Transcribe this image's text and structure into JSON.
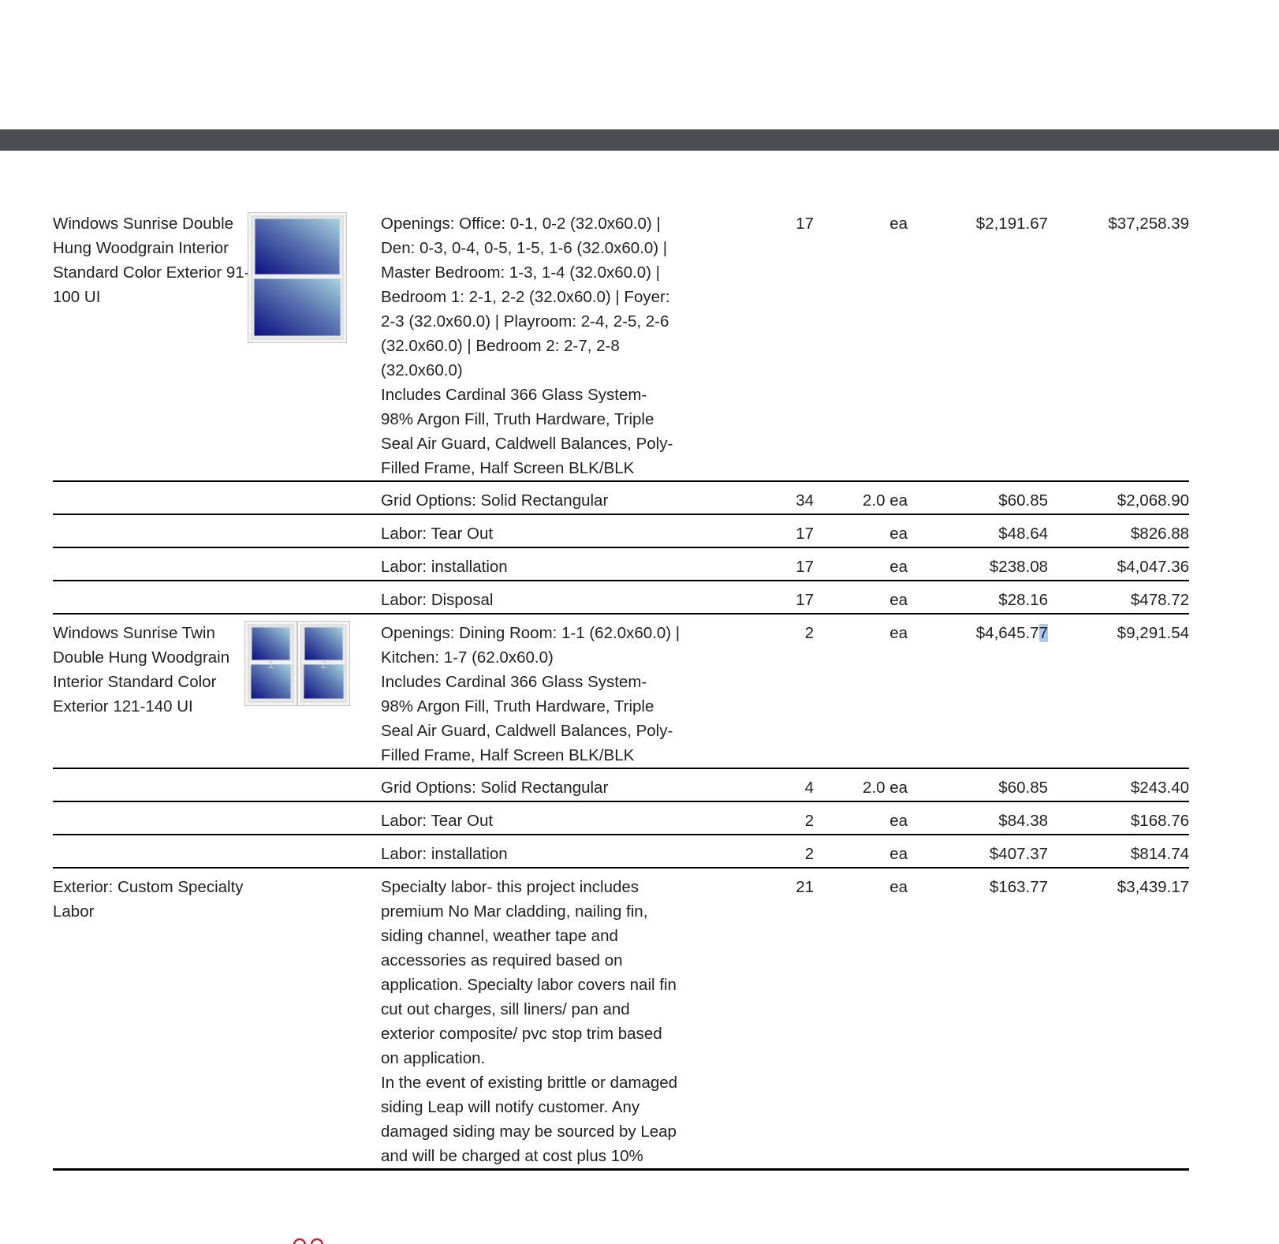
{
  "colors": {
    "header_bar": "#4a4d52",
    "glass_dark": "#0a0f80",
    "glass_light": "#a8d4e0",
    "frame": "#e8e8e8",
    "rule": "#000000",
    "logo_red": "#c0283a"
  },
  "rows": [
    {
      "name": "Windows Sunrise Double Hung Woodgrain Interior Standard Color Exterior 91-100 UI",
      "image": "single-double-hung-window",
      "desc": [
        "Openings: Office: 0-1, 0-2 (32.0x60.0) | Den: 0-3, 0-4, 0-5, 1-5, 1-6 (32.0x60.0) | Master Bedroom: 1-3, 1-4 (32.0x60.0) | Bedroom 1: 2-1, 2-2 (32.0x60.0) | Foyer: 2-3 (32.0x60.0) | Playroom: 2-4, 2-5, 2-6 (32.0x60.0) | Bedroom 2: 2-7, 2-8 (32.0x60.0)",
        "Includes Cardinal 366 Glass System- 98% Argon Fill, Truth Hardware, Triple Seal Air Guard, Caldwell Balances, Poly- Filled Frame, Half Screen BLK/BLK"
      ],
      "qty": "17",
      "unit": "ea",
      "price": "$2,191.67",
      "total": "$37,258.39"
    },
    {
      "name": "",
      "desc": [
        "Grid Options: Solid Rectangular"
      ],
      "qty": "34",
      "unit": "2.0 ea",
      "price": "$60.85",
      "total": "$2,068.90"
    },
    {
      "name": "",
      "desc": [
        "Labor: Tear Out"
      ],
      "qty": "17",
      "unit": "ea",
      "price": "$48.64",
      "total": "$826.88"
    },
    {
      "name": "",
      "desc": [
        "Labor: installation"
      ],
      "qty": "17",
      "unit": "ea",
      "price": "$238.08",
      "total": "$4,047.36"
    },
    {
      "name": "",
      "desc": [
        "Labor: Disposal"
      ],
      "qty": "17",
      "unit": "ea",
      "price": "$28.16",
      "total": "$478.72"
    },
    {
      "name": "Windows Sunrise Twin Double Hung Woodgrain Interior Standard Color Exterior 121-140 UI",
      "image": "twin-double-hung-window",
      "image_labels": [
        "1",
        "2"
      ],
      "desc": [
        "Openings: Dining Room: 1-1 (62.0x60.0) | Kitchen: 1-7 (62.0x60.0)",
        "Includes Cardinal 366 Glass System- 98% Argon Fill, Truth Hardware, Triple Seal Air Guard, Caldwell Balances, Poly- Filled Frame, Half Screen BLK/BLK"
      ],
      "qty": "2",
      "unit": "ea",
      "price": "$4,645.7",
      "price_selected": "7",
      "total": "$9,291.54"
    },
    {
      "name": "",
      "desc": [
        "Grid Options: Solid Rectangular"
      ],
      "qty": "4",
      "unit": "2.0 ea",
      "price": "$60.85",
      "total": "$243.40"
    },
    {
      "name": "",
      "desc": [
        "Labor: Tear Out"
      ],
      "qty": "2",
      "unit": "ea",
      "price": "$84.38",
      "total": "$168.76"
    },
    {
      "name": "",
      "desc": [
        "Labor: installation"
      ],
      "qty": "2",
      "unit": "ea",
      "price": "$407.37",
      "total": "$814.74"
    },
    {
      "name": "Exterior: Custom Specialty Labor",
      "desc": [
        "Specialty labor- this project includes premium No Mar cladding, nailing fin, siding channel, weather tape and accessories as required based on application. Specialty labor covers nail fin cut out charges, sill liners/ pan and exterior composite/ pvc stop trim based on application.",
        "In the event of existing brittle or damaged siding Leap will notify customer. Any damaged siding may be sourced by Leap and will be charged at cost plus 10%"
      ],
      "qty": "21",
      "unit": "ea",
      "price": "$163.77",
      "total": "$3,439.17"
    }
  ]
}
